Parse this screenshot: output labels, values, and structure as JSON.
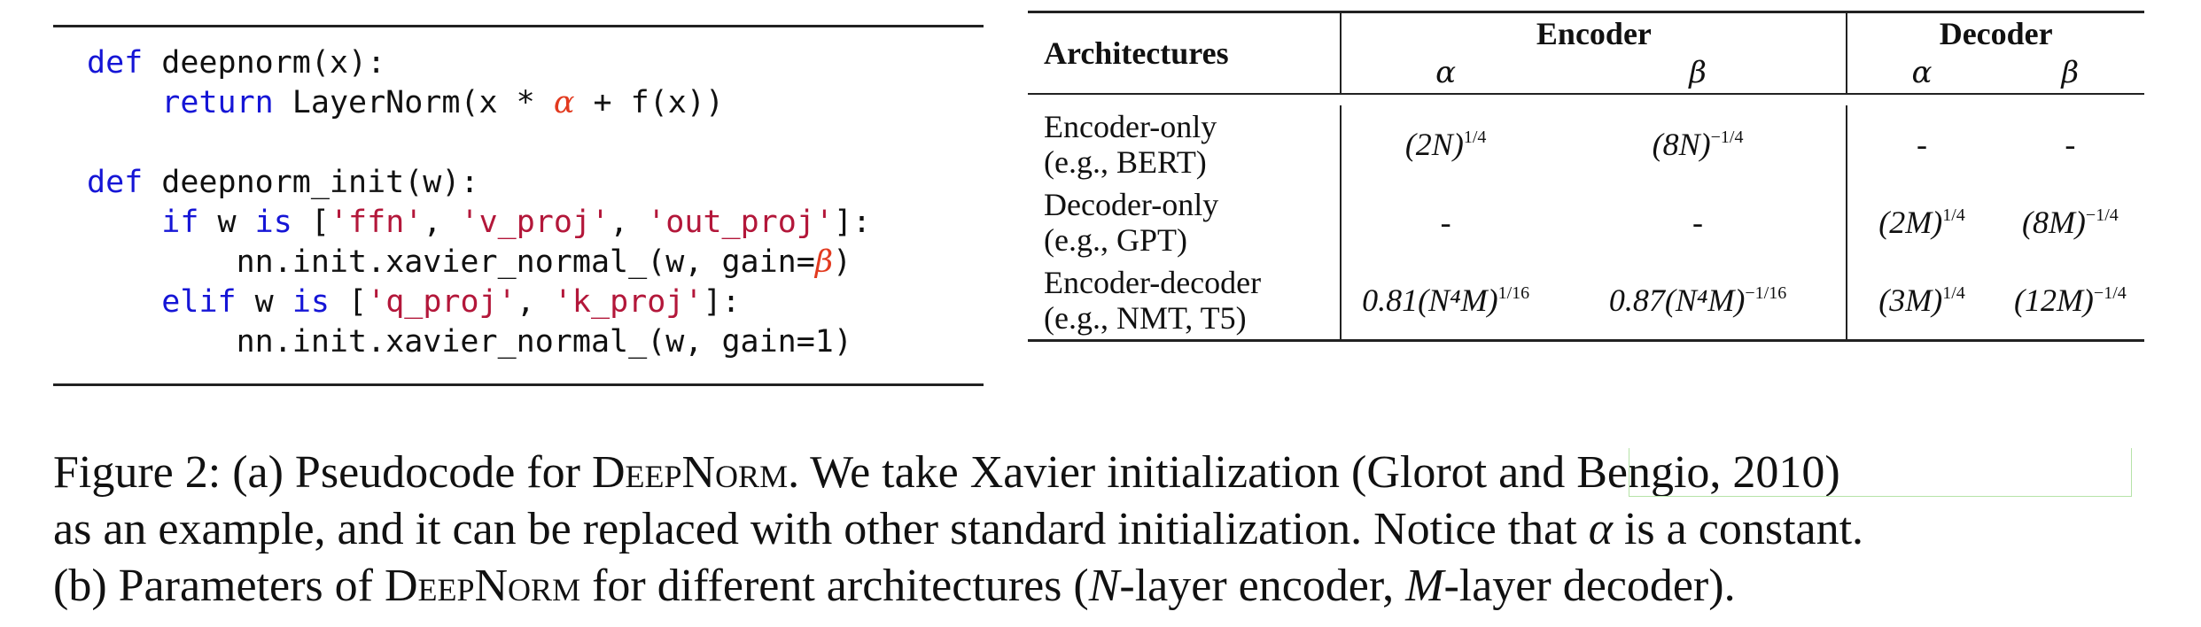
{
  "code": {
    "lines": [
      {
        "parts": [
          {
            "t": "def",
            "c": "kw"
          },
          {
            "t": " deepnorm(x):",
            "c": ""
          }
        ]
      },
      {
        "parts": [
          {
            "t": "    ",
            "c": ""
          },
          {
            "t": "return",
            "c": "kw"
          },
          {
            "t": " LayerNorm(x * ",
            "c": ""
          },
          {
            "t": "α",
            "c": "greek"
          },
          {
            "t": " + f(x))",
            "c": ""
          }
        ]
      },
      {
        "parts": []
      },
      {
        "parts": [
          {
            "t": "def",
            "c": "kw"
          },
          {
            "t": " deepnorm_init(w):",
            "c": ""
          }
        ]
      },
      {
        "parts": [
          {
            "t": "    ",
            "c": ""
          },
          {
            "t": "if",
            "c": "kw"
          },
          {
            "t": " w ",
            "c": ""
          },
          {
            "t": "is",
            "c": "kw"
          },
          {
            "t": " [",
            "c": ""
          },
          {
            "t": "'ffn'",
            "c": "str"
          },
          {
            "t": ", ",
            "c": ""
          },
          {
            "t": "'v_proj'",
            "c": "str"
          },
          {
            "t": ", ",
            "c": ""
          },
          {
            "t": "'out_proj'",
            "c": "str"
          },
          {
            "t": "]:",
            "c": ""
          }
        ]
      },
      {
        "parts": [
          {
            "t": "        nn.init.xavier_normal_(w, gain=",
            "c": ""
          },
          {
            "t": "β",
            "c": "greek"
          },
          {
            "t": ")",
            "c": ""
          }
        ]
      },
      {
        "parts": [
          {
            "t": "    ",
            "c": ""
          },
          {
            "t": "elif",
            "c": "kw"
          },
          {
            "t": " w ",
            "c": ""
          },
          {
            "t": "is",
            "c": "kw"
          },
          {
            "t": " [",
            "c": ""
          },
          {
            "t": "'q_proj'",
            "c": "str"
          },
          {
            "t": ", ",
            "c": ""
          },
          {
            "t": "'k_proj'",
            "c": "str"
          },
          {
            "t": "]:",
            "c": ""
          }
        ]
      },
      {
        "parts": [
          {
            "t": "        nn.init.xavier_normal_(w, gain=1)",
            "c": ""
          }
        ]
      }
    ]
  },
  "table": {
    "header_arch": "Architectures",
    "group_encoder": "Encoder",
    "group_decoder": "Decoder",
    "sub_alpha": "α",
    "sub_beta": "β",
    "rows": [
      {
        "arch_l1": "Encoder-only",
        "arch_l2": "(e.g., BERT)",
        "enc_alpha": {
          "base": "(2N)",
          "exp": "1/4"
        },
        "enc_beta": {
          "base": "(8N)",
          "exp": "−1/4"
        },
        "dec_alpha": {
          "base": "-",
          "exp": ""
        },
        "dec_beta": {
          "base": "-",
          "exp": ""
        }
      },
      {
        "arch_l1": "Decoder-only",
        "arch_l2": "(e.g., GPT)",
        "enc_alpha": {
          "base": "-",
          "exp": ""
        },
        "enc_beta": {
          "base": "-",
          "exp": ""
        },
        "dec_alpha": {
          "base": "(2M)",
          "exp": "1/4"
        },
        "dec_beta": {
          "base": "(8M)",
          "exp": "−1/4"
        }
      },
      {
        "arch_l1": "Encoder-decoder",
        "arch_l2": "(e.g., NMT, T5)",
        "enc_alpha": {
          "base": "0.81(N⁴M)",
          "exp": "1/16"
        },
        "enc_beta": {
          "base": "0.87(N⁴M)",
          "exp": "−1/16"
        },
        "dec_alpha": {
          "base": "(3M)",
          "exp": "1/4"
        },
        "dec_beta": {
          "base": "(12M)",
          "exp": "−1/4"
        }
      }
    ]
  },
  "caption": {
    "line1_a": "Figure 2: (a) Pseudocode for ",
    "deepnorm": "DeepNorm",
    "line1_b": ". We take Xavier initialization (Glorot and Bengio, 2010)",
    "line2_a": "as an example, and it can be replaced with other standard initialization. Notice that ",
    "alpha": "α",
    "line2_b": " is a constant.",
    "line3_a": "(b) Parameters of ",
    "line3_b": " for different architectures (",
    "N": "N",
    "line3_c": "-layer encoder, ",
    "M": "M",
    "line3_d": "-layer decoder)."
  }
}
